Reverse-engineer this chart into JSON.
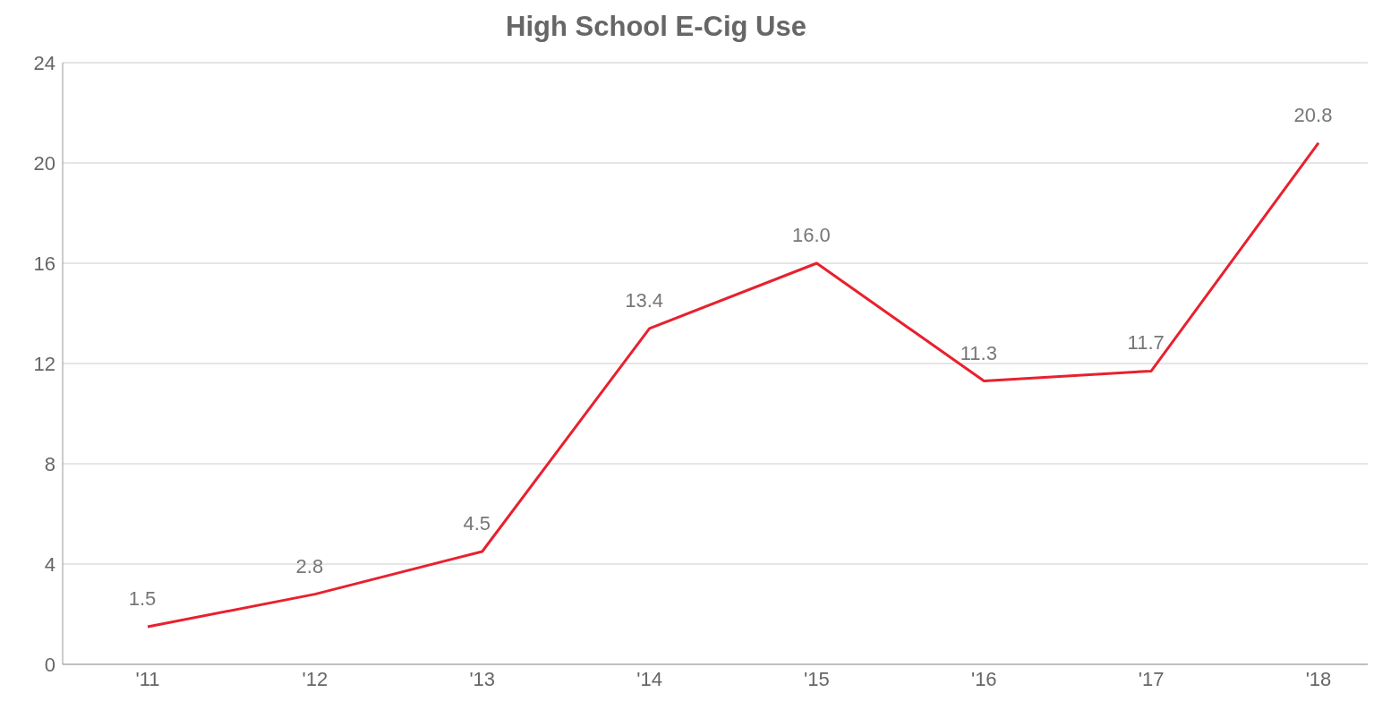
{
  "chart_data": {
    "type": "line",
    "title": "High School E-Cig Use",
    "categories": [
      "'11",
      "'12",
      "'13",
      "'14",
      "'15",
      "'16",
      "'17",
      "'18"
    ],
    "series": [
      {
        "color": "#e8212e",
        "values": [
          1.5,
          2.8,
          4.5,
          13.4,
          16.0,
          11.3,
          11.7,
          20.8
        ],
        "value_labels": [
          "1.5",
          "2.8",
          "4.5",
          "13.4",
          "16.0",
          "11.3",
          "11.7",
          "20.8"
        ]
      }
    ],
    "ylim": [
      0,
      24
    ],
    "yticks": [
      0,
      4,
      8,
      12,
      16,
      20,
      24
    ],
    "grid": "y"
  }
}
